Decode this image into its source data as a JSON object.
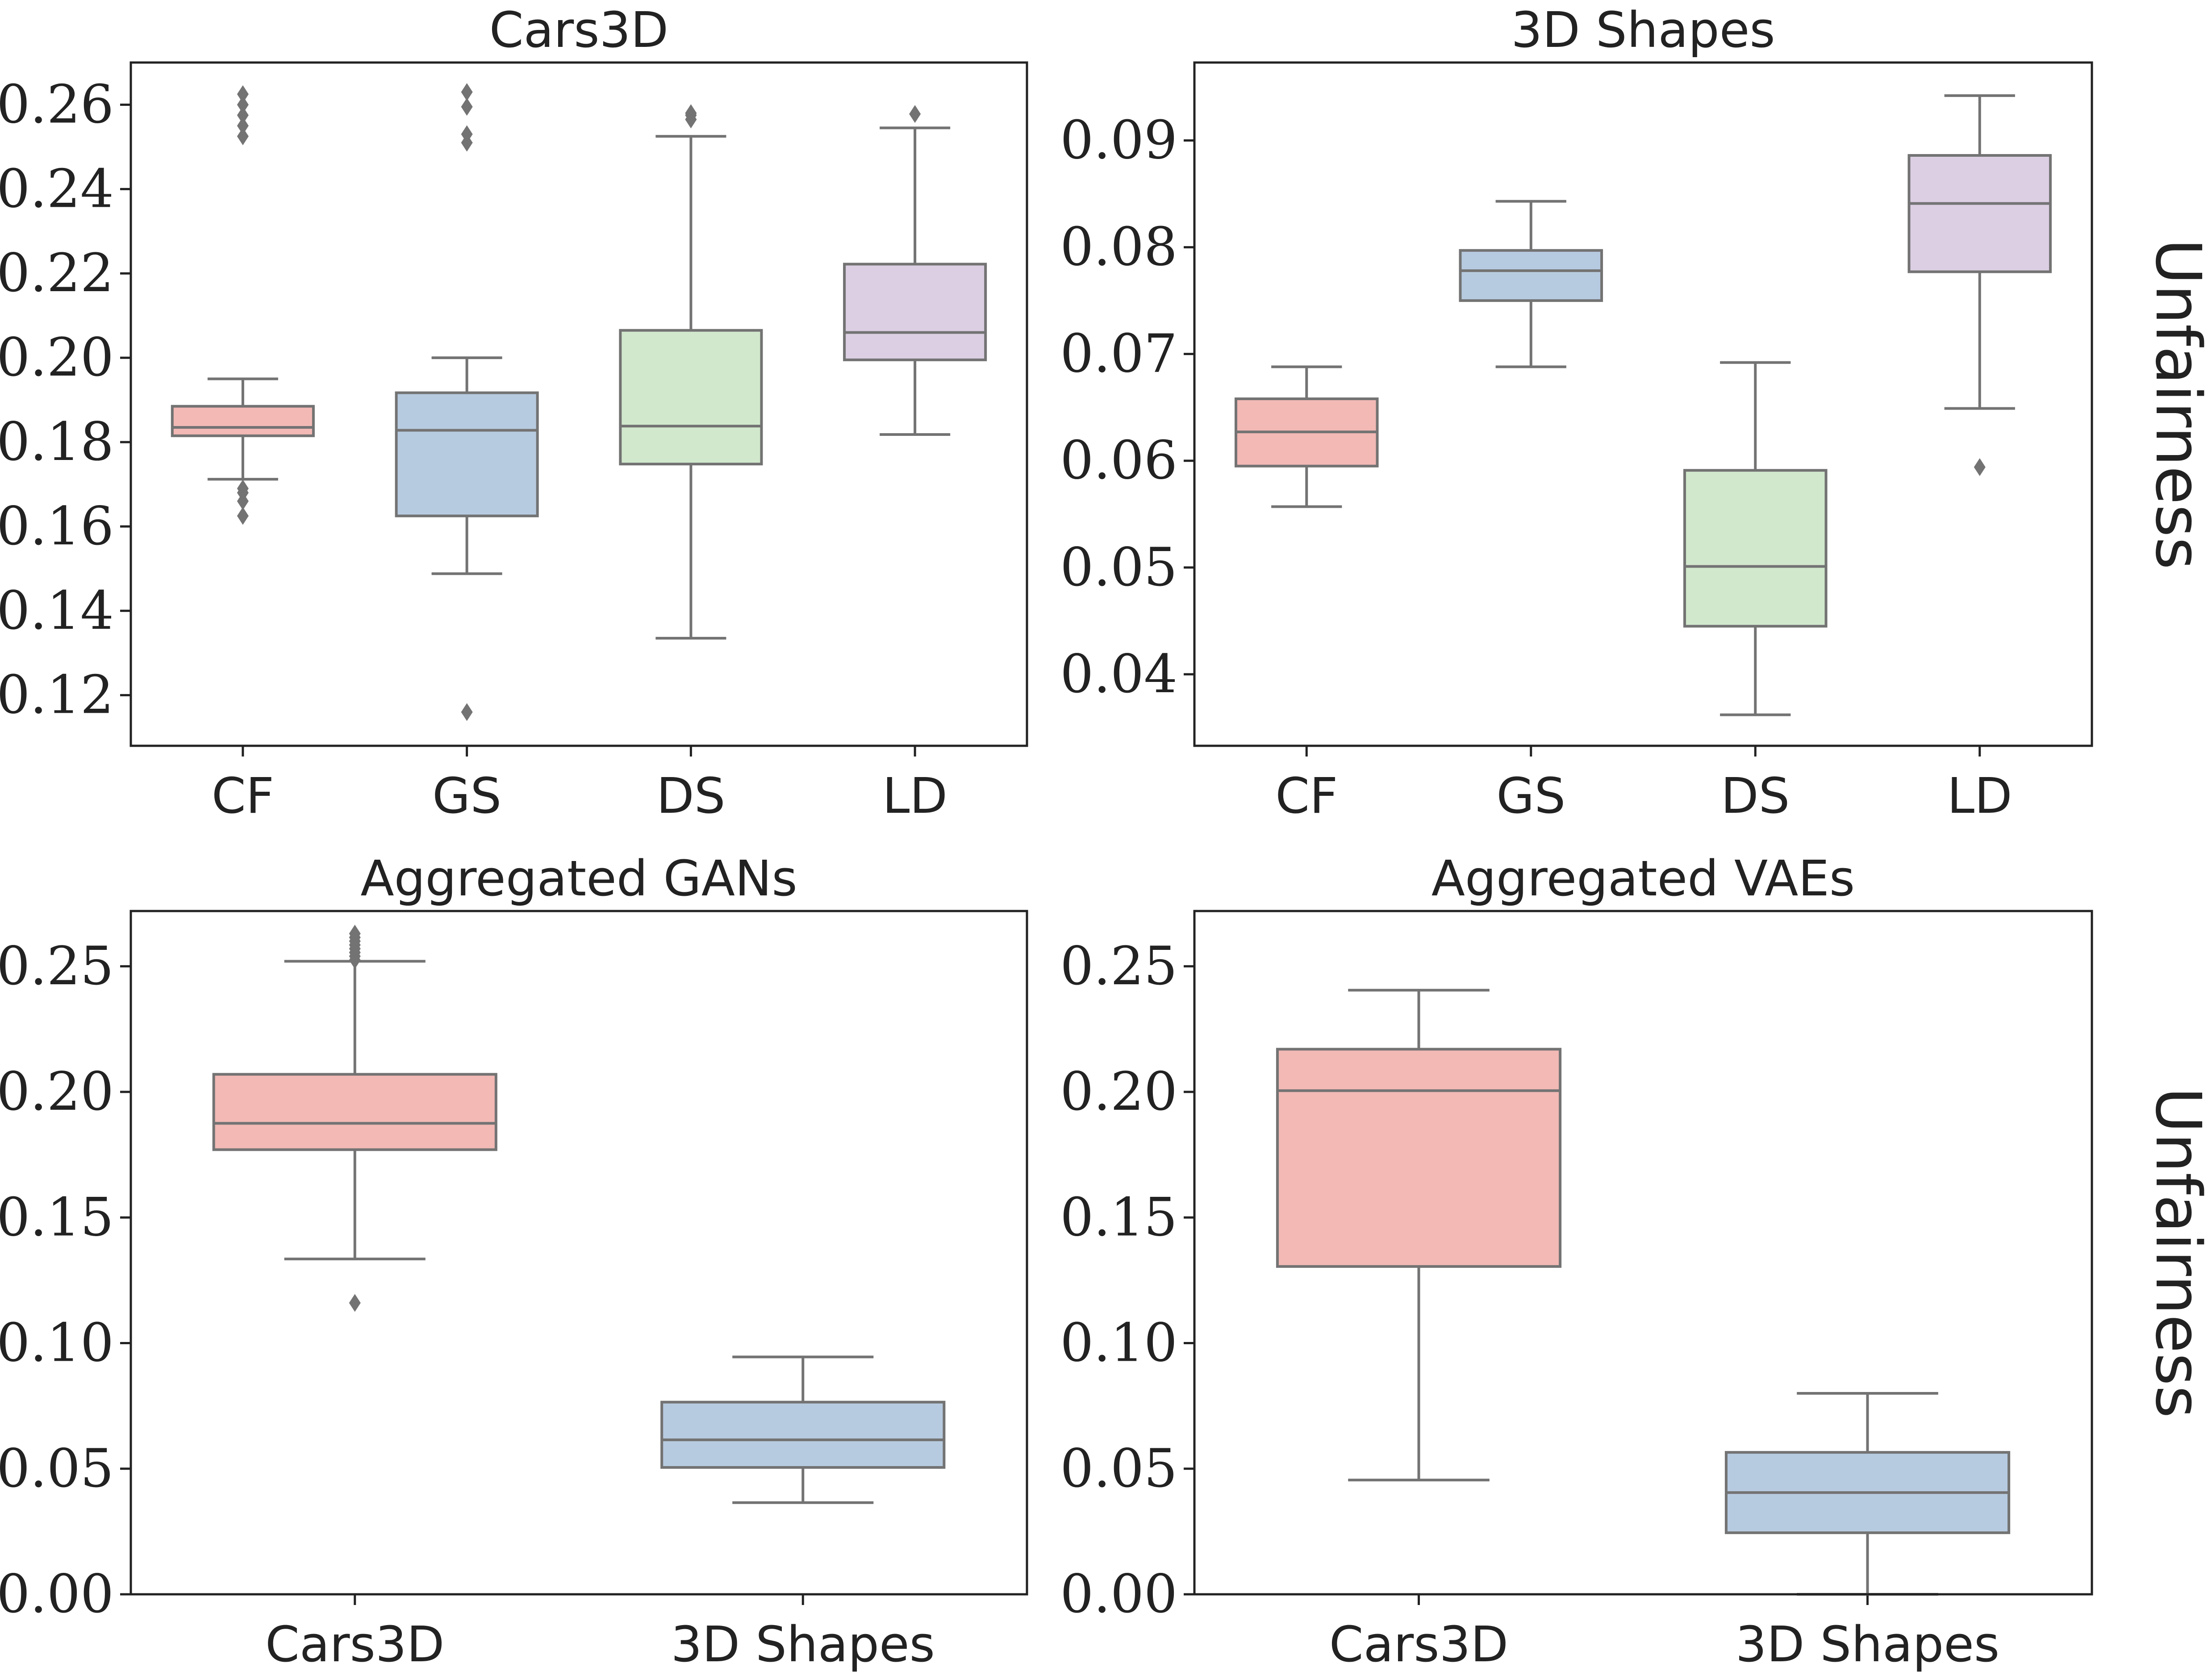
{
  "chart_data": [
    {
      "type": "box",
      "title": "Cars3D",
      "categories": [
        "CF",
        "GS",
        "DS",
        "LD"
      ],
      "ylim": [
        0.108,
        0.27
      ],
      "yticks": [
        0.12,
        0.14,
        0.16,
        0.18,
        0.2,
        0.22,
        0.24,
        0.26
      ],
      "ytick_labels": [
        "0.12",
        "0.14",
        "0.16",
        "0.18",
        "0.20",
        "0.22",
        "0.24",
        "0.26"
      ],
      "ylabel": "",
      "side_label": "",
      "boxes": [
        {
          "category": "CF",
          "q1": 0.1815,
          "median": 0.1835,
          "q3": 0.1885,
          "whisker_low": 0.1712,
          "whisker_high": 0.195,
          "outliers": [
            0.1625,
            0.166,
            0.168,
            0.169,
            0.2525,
            0.255,
            0.2575,
            0.26,
            0.2625
          ],
          "color": "#f2b9b5"
        },
        {
          "category": "GS",
          "q1": 0.1625,
          "median": 0.1828,
          "q3": 0.1917,
          "whisker_low": 0.1488,
          "whisker_high": 0.2,
          "outliers": [
            0.116,
            0.251,
            0.253,
            0.2595,
            0.263
          ],
          "color": "#b7cbe0"
        },
        {
          "category": "DS",
          "q1": 0.1748,
          "median": 0.1838,
          "q3": 0.2065,
          "whisker_low": 0.1335,
          "whisker_high": 0.2525,
          "outliers": [
            0.2565,
            0.2575,
            0.258
          ],
          "color": "#d1e8cc"
        },
        {
          "category": "LD",
          "q1": 0.1995,
          "median": 0.206,
          "q3": 0.2222,
          "whisker_low": 0.1818,
          "whisker_high": 0.2545,
          "outliers": [
            0.2578
          ],
          "color": "#dccfe3"
        }
      ]
    },
    {
      "type": "box",
      "title": "3D Shapes",
      "categories": [
        "CF",
        "GS",
        "DS",
        "LD"
      ],
      "ylim": [
        0.0333,
        0.0973
      ],
      "yticks": [
        0.04,
        0.05,
        0.06,
        0.07,
        0.08,
        0.09
      ],
      "ytick_labels": [
        "0.04",
        "0.05",
        "0.06",
        "0.07",
        "0.08",
        "0.09"
      ],
      "ylabel": "",
      "side_label": "Unfairness",
      "boxes": [
        {
          "category": "CF",
          "q1": 0.0595,
          "median": 0.0627,
          "q3": 0.0658,
          "whisker_low": 0.0557,
          "whisker_high": 0.0688,
          "outliers": [],
          "color": "#f2b9b5"
        },
        {
          "category": "GS",
          "q1": 0.075,
          "median": 0.0778,
          "q3": 0.0797,
          "whisker_low": 0.0688,
          "whisker_high": 0.0843,
          "outliers": [],
          "color": "#b7cbe0"
        },
        {
          "category": "DS",
          "q1": 0.0445,
          "median": 0.0501,
          "q3": 0.0591,
          "whisker_low": 0.0362,
          "whisker_high": 0.0692,
          "outliers": [],
          "color": "#d1e8cc"
        },
        {
          "category": "LD",
          "q1": 0.0777,
          "median": 0.0841,
          "q3": 0.0886,
          "whisker_low": 0.0649,
          "whisker_high": 0.0942,
          "outliers": [
            0.0594
          ],
          "color": "#dccfe3"
        }
      ]
    },
    {
      "type": "box",
      "title": "Aggregated GANs",
      "categories": [
        "Cars3D",
        "3D Shapes"
      ],
      "ylim": [
        0.0,
        0.272
      ],
      "yticks": [
        0.0,
        0.05,
        0.1,
        0.15,
        0.2,
        0.25
      ],
      "ytick_labels": [
        "0.00",
        "0.05",
        "0.10",
        "0.15",
        "0.20",
        "0.25"
      ],
      "ylabel": "",
      "side_label": "",
      "boxes": [
        {
          "category": "Cars3D",
          "q1": 0.177,
          "median": 0.1875,
          "q3": 0.207,
          "whisker_low": 0.1335,
          "whisker_high": 0.252,
          "outliers": [
            0.116,
            0.2525,
            0.254,
            0.2555,
            0.257,
            0.2585,
            0.26,
            0.2615,
            0.263
          ],
          "color": "#f2b9b5"
        },
        {
          "category": "3D Shapes",
          "q1": 0.0505,
          "median": 0.0615,
          "q3": 0.0765,
          "whisker_low": 0.0365,
          "whisker_high": 0.0945,
          "outliers": [],
          "color": "#b7cbe0"
        }
      ]
    },
    {
      "type": "box",
      "title": "Aggregated VAEs",
      "categories": [
        "Cars3D",
        "3D Shapes"
      ],
      "ylim": [
        0.0,
        0.272
      ],
      "yticks": [
        0.0,
        0.05,
        0.1,
        0.15,
        0.2,
        0.25
      ],
      "ytick_labels": [
        "0.00",
        "0.05",
        "0.10",
        "0.15",
        "0.20",
        "0.25"
      ],
      "ylabel": "",
      "side_label": "Unfairness",
      "boxes": [
        {
          "category": "Cars3D",
          "q1": 0.1305,
          "median": 0.2005,
          "q3": 0.217,
          "whisker_low": 0.0455,
          "whisker_high": 0.2405,
          "outliers": [],
          "color": "#f2b9b5"
        },
        {
          "category": "3D Shapes",
          "q1": 0.0245,
          "median": 0.0405,
          "q3": 0.0565,
          "whisker_low": 0.0,
          "whisker_high": 0.08,
          "outliers": [],
          "color": "#b7cbe0"
        }
      ]
    }
  ],
  "style": {
    "line_color": "#737373",
    "outlier_color": "#737373",
    "axes_color": "#222222"
  }
}
